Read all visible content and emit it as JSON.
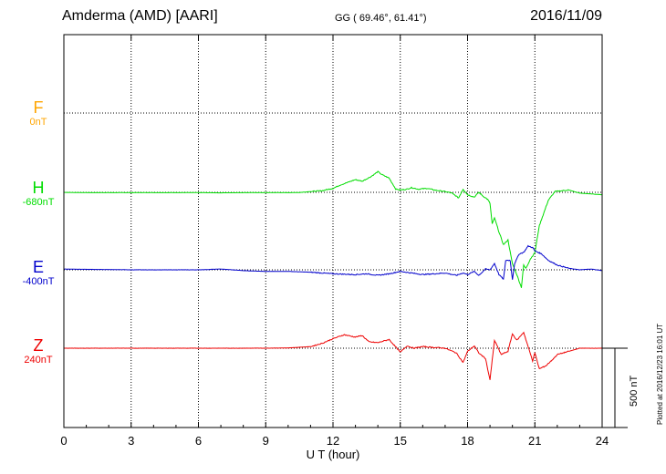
{
  "header": {
    "station": "Amderma (AMD)  [AARI]",
    "coords": "GG ( 69.46°,  61.41°)",
    "date": "2016/11/09"
  },
  "components": [
    {
      "key": "F",
      "letter": "F",
      "offset": "0nT",
      "color": "#ffa500"
    },
    {
      "key": "H",
      "letter": "H",
      "offset": "-680nT",
      "color": "#00dd00"
    },
    {
      "key": "E",
      "letter": "E",
      "offset": "-400nT",
      "color": "#0000cc"
    },
    {
      "key": "Z",
      "letter": "Z",
      "offset": "240nT",
      "color": "#ee0000"
    }
  ],
  "scale_label": "500 nT",
  "plotted_note": "Plotted at 2016/12/23 16:01 UT",
  "chart_data": {
    "type": "line",
    "xlabel": "U T (hour)",
    "xlim": [
      0,
      24
    ],
    "x_ticks": [
      0,
      3,
      6,
      9,
      12,
      15,
      18,
      21,
      24
    ],
    "grid": true,
    "scale_bar_nT": 500,
    "series": [
      {
        "name": "F",
        "color": "#ffa500",
        "points": []
      },
      {
        "name": "H",
        "color": "#00dd00",
        "points": [
          [
            0,
            0
          ],
          [
            1,
            -2
          ],
          [
            2,
            -2
          ],
          [
            3,
            -2
          ],
          [
            4,
            -2
          ],
          [
            5,
            -2
          ],
          [
            6,
            -2
          ],
          [
            7,
            -3
          ],
          [
            8,
            -2
          ],
          [
            9,
            -2
          ],
          [
            10,
            -2
          ],
          [
            10.5,
            -1
          ],
          [
            11,
            5
          ],
          [
            11.5,
            10
          ],
          [
            12,
            25
          ],
          [
            12.3,
            45
          ],
          [
            12.6,
            60
          ],
          [
            13,
            80
          ],
          [
            13.3,
            70
          ],
          [
            13.7,
            100
          ],
          [
            14,
            130
          ],
          [
            14.2,
            110
          ],
          [
            14.5,
            90
          ],
          [
            14.8,
            20
          ],
          [
            15,
            15
          ],
          [
            15.3,
            20
          ],
          [
            15.5,
            30
          ],
          [
            15.8,
            20
          ],
          [
            16.2,
            25
          ],
          [
            16.5,
            15
          ],
          [
            17,
            5
          ],
          [
            17.3,
            -5
          ],
          [
            17.6,
            -35
          ],
          [
            17.8,
            20
          ],
          [
            18,
            -15
          ],
          [
            18.3,
            -30
          ],
          [
            18.5,
            0
          ],
          [
            18.7,
            -25
          ],
          [
            18.9,
            -45
          ],
          [
            19,
            -70
          ],
          [
            19.1,
            -200
          ],
          [
            19.2,
            -160
          ],
          [
            19.4,
            -250
          ],
          [
            19.6,
            -330
          ],
          [
            19.8,
            -300
          ],
          [
            20,
            -450
          ],
          [
            20.2,
            -520
          ],
          [
            20.4,
            -600
          ],
          [
            20.5,
            -460
          ],
          [
            20.6,
            -480
          ],
          [
            20.8,
            -420
          ],
          [
            21,
            -380
          ],
          [
            21.2,
            -210
          ],
          [
            21.4,
            -130
          ],
          [
            21.6,
            -50
          ],
          [
            21.9,
            5
          ],
          [
            22.2,
            10
          ],
          [
            22.5,
            15
          ],
          [
            23,
            -5
          ],
          [
            23.5,
            -10
          ],
          [
            24,
            -15
          ]
        ]
      },
      {
        "name": "E",
        "color": "#0000cc",
        "points": [
          [
            0,
            5
          ],
          [
            1,
            3
          ],
          [
            2,
            2
          ],
          [
            3,
            0
          ],
          [
            4,
            0
          ],
          [
            5,
            0
          ],
          [
            6,
            0
          ],
          [
            7,
            5
          ],
          [
            8,
            -5
          ],
          [
            9,
            -10
          ],
          [
            10,
            -10
          ],
          [
            11,
            -15
          ],
          [
            12,
            -25
          ],
          [
            13,
            -30
          ],
          [
            13.5,
            -25
          ],
          [
            14,
            -35
          ],
          [
            14.5,
            -25
          ],
          [
            15,
            -10
          ],
          [
            16,
            -30
          ],
          [
            17,
            -20
          ],
          [
            17.5,
            -35
          ],
          [
            17.8,
            -20
          ],
          [
            18,
            -30
          ],
          [
            18.3,
            -10
          ],
          [
            18.5,
            -35
          ],
          [
            18.8,
            5
          ],
          [
            19,
            0
          ],
          [
            19.2,
            40
          ],
          [
            19.4,
            -30
          ],
          [
            19.6,
            -60
          ],
          [
            19.7,
            60
          ],
          [
            19.9,
            60
          ],
          [
            20,
            -60
          ],
          [
            20.1,
            40
          ],
          [
            20.3,
            100
          ],
          [
            20.5,
            110
          ],
          [
            20.7,
            150
          ],
          [
            20.9,
            140
          ],
          [
            21,
            120
          ],
          [
            21.3,
            100
          ],
          [
            21.6,
            60
          ],
          [
            22,
            30
          ],
          [
            22.5,
            10
          ],
          [
            23,
            0
          ],
          [
            23.5,
            5
          ],
          [
            24,
            -5
          ]
        ]
      },
      {
        "name": "Z",
        "color": "#ee0000",
        "points": [
          [
            0,
            0
          ],
          [
            3,
            0
          ],
          [
            6,
            0
          ],
          [
            9,
            0
          ],
          [
            10,
            2
          ],
          [
            11,
            10
          ],
          [
            11.5,
            30
          ],
          [
            12,
            60
          ],
          [
            12.5,
            85
          ],
          [
            13,
            70
          ],
          [
            13.3,
            80
          ],
          [
            13.6,
            40
          ],
          [
            14,
            35
          ],
          [
            14.5,
            55
          ],
          [
            15,
            -25
          ],
          [
            15.3,
            15
          ],
          [
            15.6,
            0
          ],
          [
            16,
            10
          ],
          [
            17,
            0
          ],
          [
            17.5,
            -30
          ],
          [
            17.8,
            -90
          ],
          [
            18,
            -20
          ],
          [
            18.3,
            15
          ],
          [
            18.5,
            -30
          ],
          [
            18.8,
            -65
          ],
          [
            19,
            -200
          ],
          [
            19.2,
            50
          ],
          [
            19.5,
            -40
          ],
          [
            19.8,
            -20
          ],
          [
            20,
            90
          ],
          [
            20.2,
            50
          ],
          [
            20.5,
            100
          ],
          [
            20.7,
            10
          ],
          [
            20.9,
            -80
          ],
          [
            21,
            -30
          ],
          [
            21.2,
            -130
          ],
          [
            21.5,
            -110
          ],
          [
            21.8,
            -70
          ],
          [
            22,
            -40
          ],
          [
            22.5,
            -20
          ],
          [
            23,
            0
          ],
          [
            24,
            0
          ]
        ]
      }
    ]
  }
}
